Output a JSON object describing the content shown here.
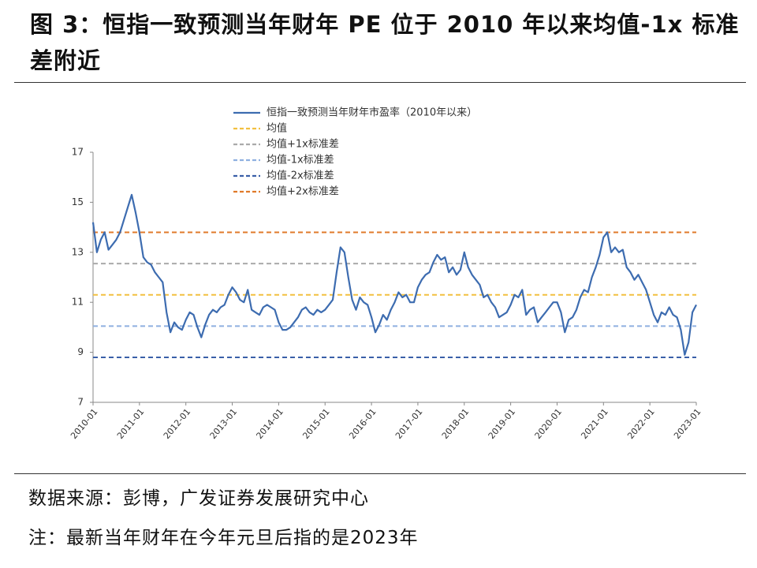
{
  "title": "图 3：恒指一致预测当年财年 PE 位于 2010 年以来均值-1x 标准差附近",
  "source": "数据来源：彭博，广发证券发展研究中心",
  "note": "注：最新当年财年在今年元旦后指的是2023年",
  "chart_data": {
    "type": "line",
    "x": [
      "2010-01",
      "2010-02",
      "2010-03",
      "2010-04",
      "2010-05",
      "2010-06",
      "2010-07",
      "2010-08",
      "2010-09",
      "2010-10",
      "2010-11",
      "2010-12",
      "2011-01",
      "2011-02",
      "2011-03",
      "2011-04",
      "2011-05",
      "2011-06",
      "2011-07",
      "2011-08",
      "2011-09",
      "2011-10",
      "2011-11",
      "2011-12",
      "2012-01",
      "2012-02",
      "2012-03",
      "2012-04",
      "2012-05",
      "2012-06",
      "2012-07",
      "2012-08",
      "2012-09",
      "2012-10",
      "2012-11",
      "2012-12",
      "2013-01",
      "2013-02",
      "2013-03",
      "2013-04",
      "2013-05",
      "2013-06",
      "2013-07",
      "2013-08",
      "2013-09",
      "2013-10",
      "2013-11",
      "2013-12",
      "2014-01",
      "2014-02",
      "2014-03",
      "2014-04",
      "2014-05",
      "2014-06",
      "2014-07",
      "2014-08",
      "2014-09",
      "2014-10",
      "2014-11",
      "2014-12",
      "2015-01",
      "2015-02",
      "2015-03",
      "2015-04",
      "2015-05",
      "2015-06",
      "2015-07",
      "2015-08",
      "2015-09",
      "2015-10",
      "2015-11",
      "2015-12",
      "2016-01",
      "2016-02",
      "2016-03",
      "2016-04",
      "2016-05",
      "2016-06",
      "2016-07",
      "2016-08",
      "2016-09",
      "2016-10",
      "2016-11",
      "2016-12",
      "2017-01",
      "2017-02",
      "2017-03",
      "2017-04",
      "2017-05",
      "2017-06",
      "2017-07",
      "2017-08",
      "2017-09",
      "2017-10",
      "2017-11",
      "2017-12",
      "2018-01",
      "2018-02",
      "2018-03",
      "2018-04",
      "2018-05",
      "2018-06",
      "2018-07",
      "2018-08",
      "2018-09",
      "2018-10",
      "2018-11",
      "2018-12",
      "2019-01",
      "2019-02",
      "2019-03",
      "2019-04",
      "2019-05",
      "2019-06",
      "2019-07",
      "2019-08",
      "2019-09",
      "2019-10",
      "2019-11",
      "2019-12",
      "2020-01",
      "2020-02",
      "2020-03",
      "2020-04",
      "2020-05",
      "2020-06",
      "2020-07",
      "2020-08",
      "2020-09",
      "2020-10",
      "2020-11",
      "2020-12",
      "2021-01",
      "2021-02",
      "2021-03",
      "2021-04",
      "2021-05",
      "2021-06",
      "2021-07",
      "2021-08",
      "2021-09",
      "2021-10",
      "2021-11",
      "2021-12",
      "2022-01",
      "2022-02",
      "2022-03",
      "2022-04",
      "2022-05",
      "2022-06",
      "2022-07",
      "2022-08",
      "2022-09",
      "2022-10",
      "2022-11",
      "2022-12",
      "2023-01"
    ],
    "xticks": [
      "2010-01",
      "2011-01",
      "2012-01",
      "2013-01",
      "2014-01",
      "2015-01",
      "2016-01",
      "2017-01",
      "2018-01",
      "2019-01",
      "2020-01",
      "2021-01",
      "2022-01",
      "2023-01"
    ],
    "series": [
      {
        "name": "恒指一致预测当年财年市盈率（2010年以来）",
        "color": "#3d6cb0",
        "values": [
          14.2,
          13.0,
          13.5,
          13.8,
          13.1,
          13.3,
          13.5,
          13.8,
          14.3,
          14.8,
          15.3,
          14.6,
          13.8,
          12.8,
          12.6,
          12.5,
          12.2,
          12.0,
          11.8,
          10.6,
          9.8,
          10.2,
          10.0,
          9.9,
          10.3,
          10.6,
          10.5,
          10.0,
          9.6,
          10.1,
          10.5,
          10.7,
          10.6,
          10.8,
          10.9,
          11.3,
          11.6,
          11.4,
          11.1,
          11.0,
          11.5,
          10.7,
          10.6,
          10.5,
          10.8,
          10.9,
          10.8,
          10.7,
          10.2,
          9.9,
          9.9,
          10.0,
          10.2,
          10.4,
          10.7,
          10.8,
          10.6,
          10.5,
          10.7,
          10.6,
          10.7,
          10.9,
          11.1,
          12.2,
          13.2,
          13.0,
          12.0,
          11.1,
          10.7,
          11.2,
          11.0,
          10.9,
          10.4,
          9.8,
          10.1,
          10.5,
          10.3,
          10.7,
          11.0,
          11.4,
          11.2,
          11.3,
          11.0,
          11.0,
          11.6,
          11.9,
          12.1,
          12.2,
          12.6,
          12.9,
          12.7,
          12.8,
          12.2,
          12.4,
          12.1,
          12.3,
          13.0,
          12.4,
          12.1,
          11.9,
          11.7,
          11.2,
          11.3,
          11.0,
          10.8,
          10.4,
          10.5,
          10.6,
          10.9,
          11.3,
          11.2,
          11.5,
          10.5,
          10.7,
          10.8,
          10.2,
          10.4,
          10.6,
          10.8,
          11.0,
          11.0,
          10.6,
          9.8,
          10.3,
          10.4,
          10.7,
          11.2,
          11.5,
          11.4,
          12.0,
          12.4,
          12.9,
          13.6,
          13.8,
          13.0,
          13.2,
          13.0,
          13.1,
          12.4,
          12.2,
          11.9,
          12.1,
          11.8,
          11.5,
          11.0,
          10.5,
          10.2,
          10.6,
          10.5,
          10.8,
          10.5,
          10.4,
          9.9,
          8.9,
          9.4,
          10.6,
          10.9
        ]
      }
    ],
    "hlines": [
      {
        "name": "均值",
        "color": "#f2c040",
        "value": 11.3
      },
      {
        "name": "均值+1x标准差",
        "color": "#aaaaaa",
        "value": 12.55
      },
      {
        "name": "均值-1x标准差",
        "color": "#8fb0e0",
        "value": 10.05
      },
      {
        "name": "均值-2x标准差",
        "color": "#3a5fa8",
        "value": 8.8
      },
      {
        "name": "均值+2x标准差",
        "color": "#e07a2a",
        "value": 13.8
      }
    ],
    "ylim": [
      7,
      17
    ],
    "yticks": [
      7,
      9,
      11,
      13,
      15,
      17
    ]
  }
}
